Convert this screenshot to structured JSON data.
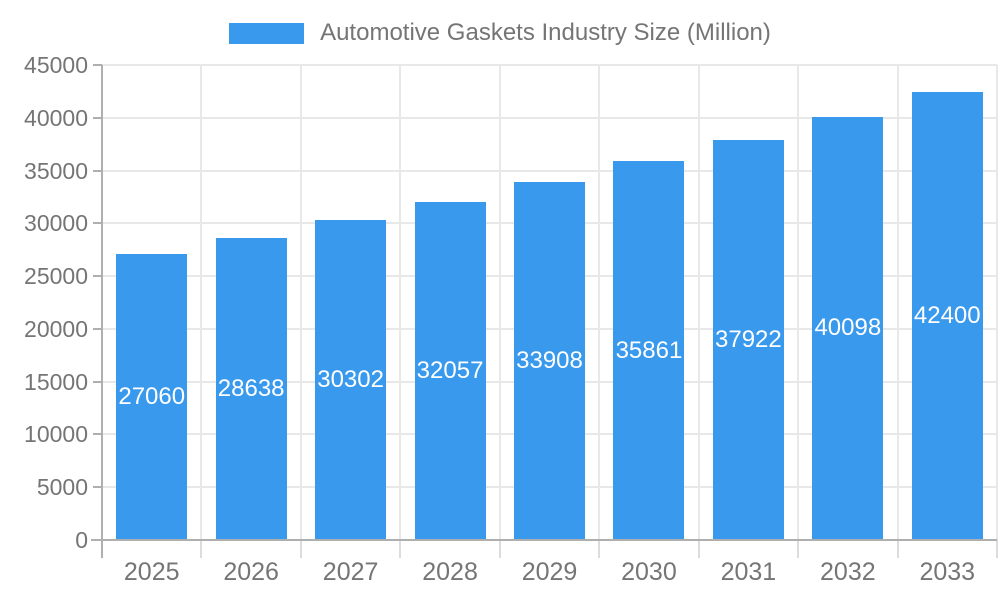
{
  "chart_data": {
    "type": "bar",
    "title": "Automotive Gaskets Industry Size (Million)",
    "legend_position": "top",
    "categories": [
      "2025",
      "2026",
      "2027",
      "2028",
      "2029",
      "2030",
      "2031",
      "2032",
      "2033"
    ],
    "series": [
      {
        "name": "Automotive Gaskets Industry Size (Million)",
        "values": [
          27060,
          28638,
          30302,
          32057,
          33908,
          35861,
          37922,
          40098,
          42400
        ]
      }
    ],
    "xlabel": "",
    "ylabel": "",
    "ylim": [
      0,
      45000
    ],
    "ytick_step": 5000,
    "yticks": [
      0,
      5000,
      10000,
      15000,
      20000,
      25000,
      30000,
      35000,
      40000,
      45000
    ],
    "grid": true,
    "value_labels": "inside-center",
    "colors": {
      "bar": "#3999ED",
      "bar_label": "#FFFFFF",
      "axis_text": "#757575",
      "axis_line": "#AFAFAF",
      "grid_line": "#E8E8E8",
      "tick_line": "#DCDCDC",
      "background": "#FFFFFF"
    }
  }
}
